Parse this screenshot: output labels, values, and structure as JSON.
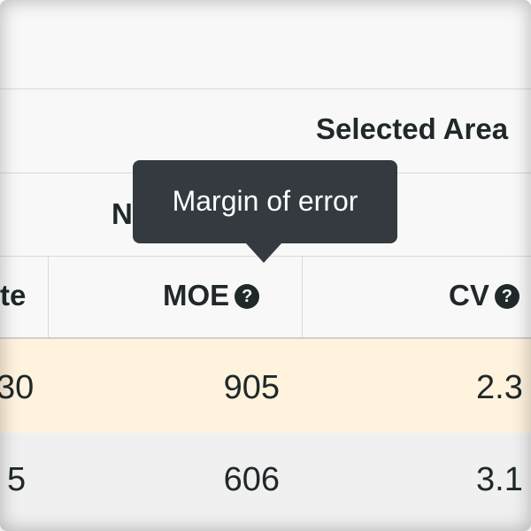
{
  "table": {
    "group_header": "Selected Area",
    "subgroup_header_fragment": "N",
    "columns": {
      "estimate_fragment": "te",
      "moe": "MOE",
      "cv": "CV"
    },
    "help_glyph": "?",
    "rows": [
      {
        "estimate_fragment": "30",
        "moe": "905",
        "cv_fragment": "2.3"
      },
      {
        "estimate_fragment": "5",
        "moe": "606",
        "cv_fragment": "3.1"
      }
    ]
  },
  "tooltip": {
    "text": "Margin of error"
  },
  "colors": {
    "text": "#202829",
    "highlight_row": "#fff3de",
    "alt_row": "#f0f0f0",
    "tooltip_bg": "#343a40",
    "border": "#d9d9d9"
  }
}
